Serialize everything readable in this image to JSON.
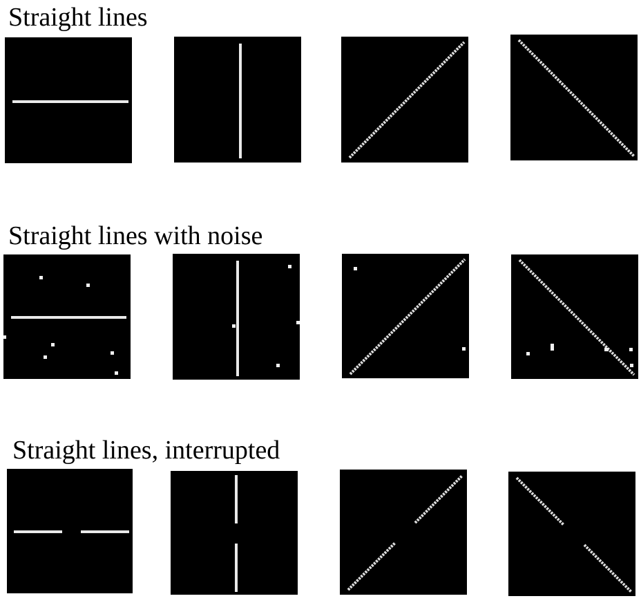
{
  "sections": [
    {
      "title": "Straight lines",
      "panels": [
        "horizontal-line",
        "vertical-line",
        "rising-diagonal-line",
        "falling-diagonal-line"
      ]
    },
    {
      "title": "Straight lines with noise",
      "panels": [
        "horizontal-line-with-noise",
        "vertical-line-with-noise",
        "rising-diagonal-line-with-noise",
        "falling-diagonal-line-with-noise"
      ]
    },
    {
      "title": "Straight lines, interrupted",
      "panels": [
        "horizontal-line-interrupted",
        "vertical-line-interrupted",
        "rising-diagonal-line-interrupted",
        "falling-diagonal-line-interrupted"
      ]
    }
  ],
  "colors": {
    "background": "#ffffff",
    "panel": "#000000",
    "line": "#e9e9e9",
    "text": "#000000"
  }
}
